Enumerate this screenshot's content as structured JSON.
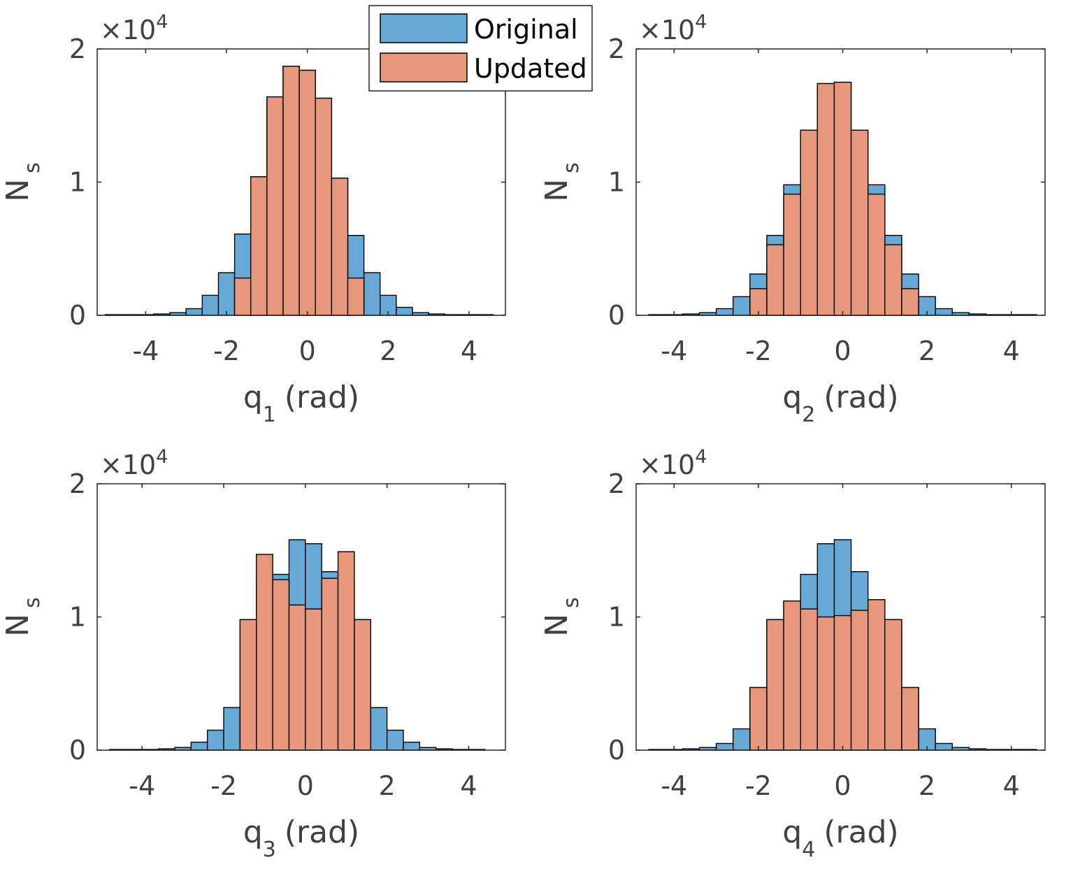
{
  "legend": {
    "items": [
      {
        "label": "Original",
        "color": "#66a9d7"
      },
      {
        "label": "Updated",
        "color": "#e8987a"
      }
    ]
  },
  "chart_data": [
    {
      "type": "bar",
      "title": "",
      "xlabel_base": "q",
      "xlabel_sub": "1",
      "xlabel_unit": "(rad)",
      "ylabel_base": "N",
      "ylabel_sub": "s",
      "exponent_base": "×10",
      "exponent_power": "4",
      "xlim": [
        -5.2,
        4.9
      ],
      "ylim": [
        0,
        2
      ],
      "xticks": [
        -4,
        -2,
        0,
        2,
        4
      ],
      "xtick_labels": [
        "-4",
        "-2",
        "0",
        "2",
        "4"
      ],
      "yticks": [
        0,
        1,
        2
      ],
      "ytick_labels": [
        "0",
        "1",
        "2"
      ],
      "bin_edges": [
        -5.0,
        -4.6,
        -4.2,
        -3.8,
        -3.4,
        -3.0,
        -2.6,
        -2.2,
        -1.8,
        -1.4,
        -1.0,
        -0.6,
        -0.2,
        0.2,
        0.6,
        1.0,
        1.4,
        1.8,
        2.2,
        2.6,
        3.0,
        3.4,
        3.8,
        4.2,
        4.6
      ],
      "series": [
        {
          "name": "Original",
          "values": [
            0.005,
            0.005,
            0.005,
            0.01,
            0.02,
            0.05,
            0.15,
            0.32,
            0.61,
            1.04,
            1.64,
            1.87,
            1.84,
            1.63,
            1.03,
            0.6,
            0.32,
            0.15,
            0.06,
            0.02,
            0.01,
            0.005,
            0.005,
            0.005
          ]
        },
        {
          "name": "Updated",
          "values": [
            0,
            0,
            0,
            0,
            0,
            0,
            0,
            0,
            0.28,
            1.04,
            1.64,
            1.87,
            1.84,
            1.63,
            1.03,
            0.28,
            0,
            0,
            0,
            0,
            0,
            0,
            0,
            0
          ]
        }
      ]
    },
    {
      "type": "bar",
      "title": "",
      "xlabel_base": "q",
      "xlabel_sub": "2",
      "xlabel_unit": "(rad)",
      "ylabel_base": "N",
      "ylabel_sub": "s",
      "exponent_base": "×10",
      "exponent_power": "4",
      "xlim": [
        -4.9,
        4.8
      ],
      "ylim": [
        0,
        2
      ],
      "xticks": [
        -4,
        -2,
        0,
        2,
        4
      ],
      "xtick_labels": [
        "-4",
        "-2",
        "0",
        "2",
        "4"
      ],
      "yticks": [
        0,
        1,
        2
      ],
      "ytick_labels": [
        "0",
        "1",
        "2"
      ],
      "bin_edges": [
        -4.6,
        -4.2,
        -3.8,
        -3.4,
        -3.0,
        -2.6,
        -2.2,
        -1.8,
        -1.4,
        -1.0,
        -0.6,
        -0.2,
        0.2,
        0.6,
        1.0,
        1.4,
        1.8,
        2.2,
        2.6,
        3.0,
        3.4,
        3.8,
        4.2,
        4.6
      ],
      "series": [
        {
          "name": "Original",
          "values": [
            0.005,
            0.005,
            0.01,
            0.02,
            0.05,
            0.14,
            0.31,
            0.6,
            0.98,
            1.39,
            1.74,
            1.75,
            1.39,
            0.98,
            0.6,
            0.31,
            0.14,
            0.05,
            0.02,
            0.01,
            0.005,
            0.005,
            0.005
          ]
        },
        {
          "name": "Updated",
          "values": [
            0,
            0,
            0,
            0,
            0,
            0,
            0.2,
            0.53,
            0.91,
            1.39,
            1.74,
            1.75,
            1.39,
            0.91,
            0.53,
            0.2,
            0,
            0,
            0,
            0,
            0,
            0,
            0
          ]
        }
      ]
    },
    {
      "type": "bar",
      "title": "",
      "xlabel_base": "q",
      "xlabel_sub": "3",
      "xlabel_unit": "(rad)",
      "ylabel_base": "N",
      "ylabel_sub": "s",
      "exponent_base": "×10",
      "exponent_power": "4",
      "xlim": [
        -5.1,
        4.9
      ],
      "ylim": [
        0,
        2
      ],
      "xticks": [
        -4,
        -2,
        0,
        2,
        4
      ],
      "xtick_labels": [
        "-4",
        "-2",
        "0",
        "2",
        "4"
      ],
      "yticks": [
        0,
        1,
        2
      ],
      "ytick_labels": [
        "0",
        "1",
        "2"
      ],
      "bin_edges": [
        -4.8,
        -4.4,
        -4.0,
        -3.6,
        -3.2,
        -2.8,
        -2.4,
        -2.0,
        -1.6,
        -1.2,
        -0.8,
        -0.4,
        0.0,
        0.4,
        0.8,
        1.2,
        1.6,
        2.0,
        2.4,
        2.8,
        3.2,
        3.6,
        4.0,
        4.4
      ],
      "series": [
        {
          "name": "Original",
          "values": [
            0.005,
            0.005,
            0.005,
            0.01,
            0.02,
            0.06,
            0.15,
            0.32,
            0.98,
            1.26,
            1.32,
            1.58,
            1.55,
            1.34,
            1.27,
            0.98,
            0.32,
            0.15,
            0.06,
            0.02,
            0.01,
            0.005,
            0.005
          ]
        },
        {
          "name": "Updated",
          "values": [
            0,
            0,
            0,
            0,
            0,
            0,
            0,
            0,
            0.98,
            1.47,
            1.28,
            1.09,
            1.06,
            1.29,
            1.49,
            0.98,
            0,
            0,
            0,
            0,
            0,
            0,
            0
          ]
        }
      ]
    },
    {
      "type": "bar",
      "title": "",
      "xlabel_base": "q",
      "xlabel_sub": "4",
      "xlabel_unit": "(rad)",
      "ylabel_base": "N",
      "ylabel_sub": "s",
      "exponent_base": "×10",
      "exponent_power": "4",
      "xlim": [
        -4.9,
        4.8
      ],
      "ylim": [
        0,
        2
      ],
      "xticks": [
        -4,
        -2,
        0,
        2,
        4
      ],
      "xtick_labels": [
        "-4",
        "-2",
        "0",
        "2",
        "4"
      ],
      "yticks": [
        0,
        1,
        2
      ],
      "ytick_labels": [
        "0",
        "1",
        "2"
      ],
      "bin_edges": [
        -4.6,
        -4.2,
        -3.8,
        -3.4,
        -3.0,
        -2.6,
        -2.2,
        -1.8,
        -1.4,
        -1.0,
        -0.6,
        -0.2,
        0.2,
        0.6,
        1.0,
        1.4,
        1.8,
        2.2,
        2.6,
        3.0,
        3.4,
        3.8,
        4.2,
        4.6
      ],
      "series": [
        {
          "name": "Original",
          "values": [
            0.005,
            0.005,
            0.01,
            0.02,
            0.05,
            0.16,
            0.47,
            0.98,
            1.12,
            1.32,
            1.55,
            1.58,
            1.34,
            1.13,
            0.98,
            0.47,
            0.16,
            0.05,
            0.02,
            0.01,
            0.005,
            0.005,
            0.005
          ]
        },
        {
          "name": "Updated",
          "values": [
            0,
            0,
            0,
            0,
            0,
            0,
            0.47,
            0.98,
            1.12,
            1.06,
            1.0,
            1.01,
            1.05,
            1.13,
            0.98,
            0.47,
            0,
            0,
            0,
            0,
            0,
            0,
            0
          ]
        }
      ]
    }
  ]
}
